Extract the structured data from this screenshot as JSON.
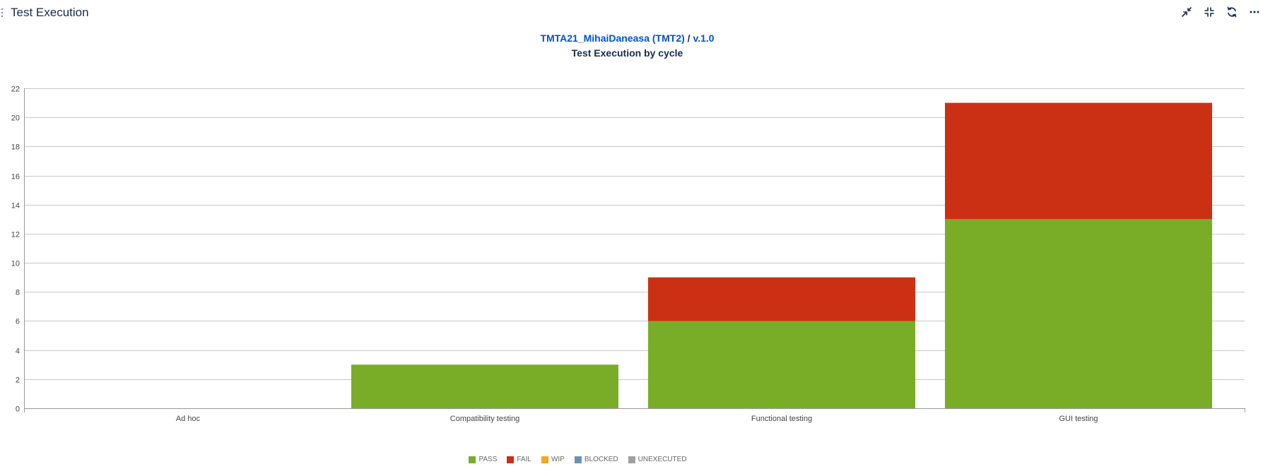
{
  "widget": {
    "title": "Test Execution"
  },
  "toolbar": {
    "icons": [
      "minimize-icon",
      "collapse-icon",
      "refresh-icon",
      "more-icon"
    ]
  },
  "chart_title": {
    "project": "TMTA21_MihaiDaneasa (TMT2)",
    "separator": "/",
    "version": "v.1.0",
    "subtitle": "Test Execution by cycle"
  },
  "chart_data": {
    "type": "bar",
    "stacked": true,
    "title": "TMTA21_MihaiDaneasa (TMT2) / v.1.0",
    "subtitle": "Test Execution by cycle",
    "xlabel": "",
    "ylabel": "",
    "ylim": [
      0,
      22
    ],
    "yticks": [
      0,
      2,
      4,
      6,
      8,
      10,
      12,
      14,
      16,
      18,
      20,
      22
    ],
    "grid": true,
    "legend_position": "bottom",
    "categories": [
      "Ad hoc",
      "Compatibility testing",
      "Functional testing",
      "GUI testing"
    ],
    "series": [
      {
        "name": "PASS",
        "color": "#79ad28",
        "values": [
          0,
          3,
          6,
          13
        ]
      },
      {
        "name": "FAIL",
        "color": "#cc3014",
        "values": [
          0,
          0,
          3,
          8
        ]
      },
      {
        "name": "WIP",
        "color": "#f5a623",
        "values": [
          0,
          0,
          0,
          0
        ]
      },
      {
        "name": "BLOCKED",
        "color": "#6693b0",
        "values": [
          0,
          0,
          0,
          0
        ]
      },
      {
        "name": "UNEXECUTED",
        "color": "#a0a0a0",
        "values": [
          0,
          0,
          0,
          0
        ]
      }
    ]
  }
}
